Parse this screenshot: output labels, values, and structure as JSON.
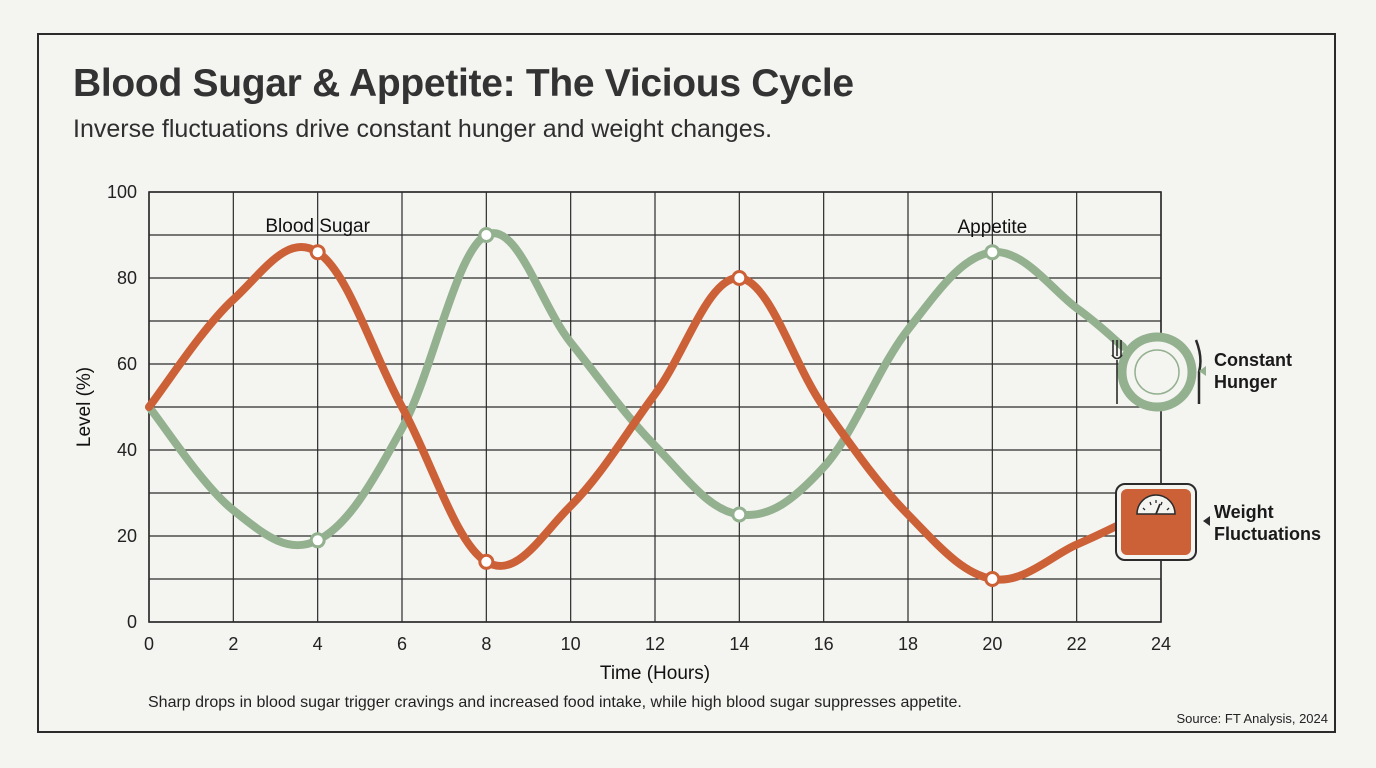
{
  "title": "Blood Sugar & Appetite: The Vicious Cycle",
  "subtitle": "Inverse fluctuations drive constant hunger and weight changes.",
  "caption": "Sharp drops in blood sugar trigger cravings and increased food intake, while high blood sugar suppresses appetite.",
  "source": "Source: FT Analysis, 2024",
  "colors": {
    "blood_sugar": "#cc6138",
    "appetite": "#93b08f",
    "grid": "#2b2b2b",
    "background": "#f4f4f1"
  },
  "callouts": {
    "hunger": {
      "line1": "Constant",
      "line2": "Hunger",
      "icon": "plate-fork-knife-icon"
    },
    "weight": {
      "line1": "Weight",
      "line2": "Fluctuations",
      "icon": "bathroom-scale-icon"
    }
  },
  "chart_data": {
    "type": "line",
    "title": "",
    "xlabel": "Time (Hours)",
    "ylabel": "Level (%)",
    "xlim": [
      0,
      24
    ],
    "ylim": [
      0,
      100
    ],
    "x_ticks": [
      0,
      2,
      4,
      6,
      8,
      10,
      12,
      14,
      16,
      18,
      20,
      22,
      24
    ],
    "y_ticks": [
      0,
      20,
      40,
      60,
      80,
      100
    ],
    "grid": true,
    "series": [
      {
        "name": "Blood Sugar",
        "color": "#cc6138",
        "x": [
          0,
          2,
          4,
          6,
          8,
          10,
          12,
          14,
          16,
          18,
          20,
          22,
          23.3
        ],
        "y": [
          50,
          75,
          86,
          50,
          14,
          27,
          53,
          80,
          50,
          25,
          10,
          18,
          24
        ],
        "markers_at_x": [
          4,
          8,
          14,
          20
        ]
      },
      {
        "name": "Appetite",
        "color": "#93b08f",
        "x": [
          0,
          2,
          4,
          6,
          8,
          10,
          12,
          14,
          16,
          18,
          20,
          22,
          23.1
        ],
        "y": [
          50,
          26,
          19,
          45,
          90,
          65,
          41,
          25,
          36,
          68,
          86,
          73,
          64
        ],
        "markers_at_x": [
          4,
          8,
          14,
          20
        ]
      }
    ]
  }
}
